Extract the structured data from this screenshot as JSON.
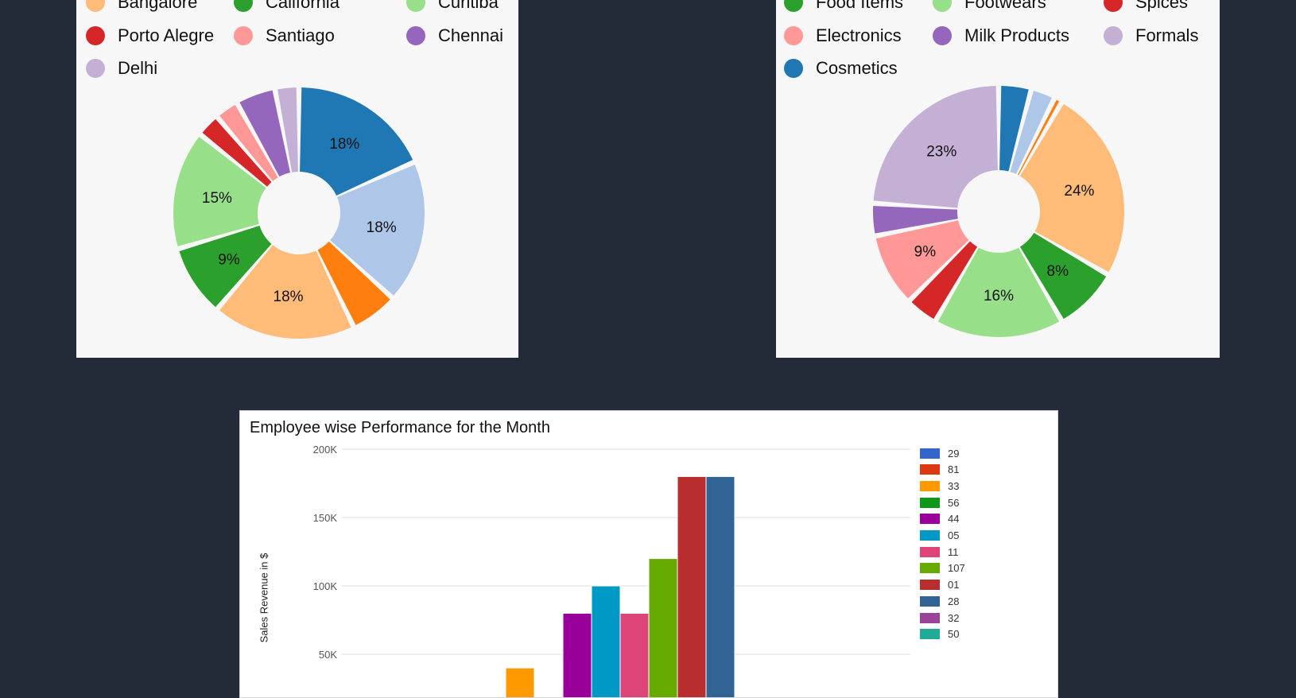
{
  "chart_data": [
    {
      "type": "pie",
      "variant": "donut",
      "slices": [
        {
          "name": "",
          "value": 18,
          "color": "#1f77b4",
          "label": "18%"
        },
        {
          "name": "",
          "value": 18,
          "color": "#aec7e8",
          "label": "18%"
        },
        {
          "name": "",
          "value": 6,
          "color": "#ff7f0e",
          "label": ""
        },
        {
          "name": "Bangalore",
          "value": 18,
          "color": "#ffbb78",
          "label": "18%"
        },
        {
          "name": "California",
          "value": 9,
          "color": "#2ca02c",
          "label": "9%"
        },
        {
          "name": "Curitiba",
          "value": 15,
          "color": "#98df8a",
          "label": "15%"
        },
        {
          "name": "Porto Alegre",
          "value": 3,
          "color": "#d62728",
          "label": ""
        },
        {
          "name": "Santiago",
          "value": 3,
          "color": "#ff9896",
          "label": ""
        },
        {
          "name": "Chennai",
          "value": 5,
          "color": "#9467bd",
          "label": ""
        },
        {
          "name": "Delhi",
          "value": 3,
          "color": "#c5b0d5",
          "label": ""
        }
      ],
      "legend": [
        {
          "text": "Bangalore",
          "color": "#ffbb78"
        },
        {
          "text": "California",
          "color": "#2ca02c"
        },
        {
          "text": "Curitiba",
          "color": "#98df8a"
        },
        {
          "text": "Porto Alegre",
          "color": "#d62728"
        },
        {
          "text": "Santiago",
          "color": "#ff9896"
        },
        {
          "text": "Chennai",
          "color": "#9467bd"
        },
        {
          "text": "Delhi",
          "color": "#c5b0d5"
        }
      ],
      "legend_placement": "top"
    },
    {
      "type": "pie",
      "variant": "donut",
      "slices": [
        {
          "name": "Cosmetics",
          "value": 4,
          "color": "#1f77b4",
          "label": ""
        },
        {
          "name": "",
          "value": 3,
          "color": "#aec7e8",
          "label": ""
        },
        {
          "name": "",
          "value": 1,
          "color": "#ff7f0e",
          "label": ""
        },
        {
          "name": "",
          "value": 24,
          "color": "#ffbb78",
          "label": "24%"
        },
        {
          "name": "Food Items",
          "value": 8,
          "color": "#2ca02c",
          "label": "8%"
        },
        {
          "name": "Footwears",
          "value": 16,
          "color": "#98df8a",
          "label": "16%"
        },
        {
          "name": "Spices",
          "value": 4,
          "color": "#d62728",
          "label": ""
        },
        {
          "name": "Electronics",
          "value": 9,
          "color": "#ff9896",
          "label": "9%"
        },
        {
          "name": "Milk Products",
          "value": 4,
          "color": "#9467bd",
          "label": ""
        },
        {
          "name": "Formals",
          "value": 23,
          "color": "#c5b0d5",
          "label": "23%"
        }
      ],
      "legend": [
        {
          "text": "Food Items",
          "color": "#2ca02c"
        },
        {
          "text": "Footwears",
          "color": "#98df8a"
        },
        {
          "text": "Spices",
          "color": "#d62728"
        },
        {
          "text": "Electronics",
          "color": "#ff9896"
        },
        {
          "text": "Milk Products",
          "color": "#9467bd"
        },
        {
          "text": "Formals",
          "color": "#c5b0d5"
        },
        {
          "text": "Cosmetics",
          "color": "#1f77b4"
        }
      ],
      "legend_placement": "top"
    },
    {
      "type": "bar",
      "title": "Employee wise Performance for the Month",
      "xlabel": "",
      "ylabel": "Sales Revenue in $",
      "ylim": [
        0,
        200000
      ],
      "yticks": [
        {
          "value": 200000,
          "label": "200K"
        },
        {
          "value": 150000,
          "label": "150K"
        },
        {
          "value": 100000,
          "label": "100K"
        },
        {
          "value": 50000,
          "label": "50K"
        }
      ],
      "grid": true,
      "legend_placement": "right",
      "series": [
        {
          "name": "29",
          "value": 0,
          "color": "#3366cc"
        },
        {
          "name": "81",
          "value": 0,
          "color": "#dc3912"
        },
        {
          "name": "33",
          "value": 40000,
          "color": "#ff9900"
        },
        {
          "name": "56",
          "value": 0,
          "color": "#109618"
        },
        {
          "name": "44",
          "value": 80000,
          "color": "#990099"
        },
        {
          "name": "05",
          "value": 100000,
          "color": "#0099c6"
        },
        {
          "name": "11",
          "value": 80000,
          "color": "#dd4477"
        },
        {
          "name": "107",
          "value": 120000,
          "color": "#66aa00"
        },
        {
          "name": "01",
          "value": 180000,
          "color": "#b82e2e"
        },
        {
          "name": "28",
          "value": 180000,
          "color": "#316395"
        },
        {
          "name": "32",
          "value": 0,
          "color": "#994499"
        },
        {
          "name": "50",
          "value": 0,
          "color": "#22aa99"
        }
      ]
    }
  ]
}
